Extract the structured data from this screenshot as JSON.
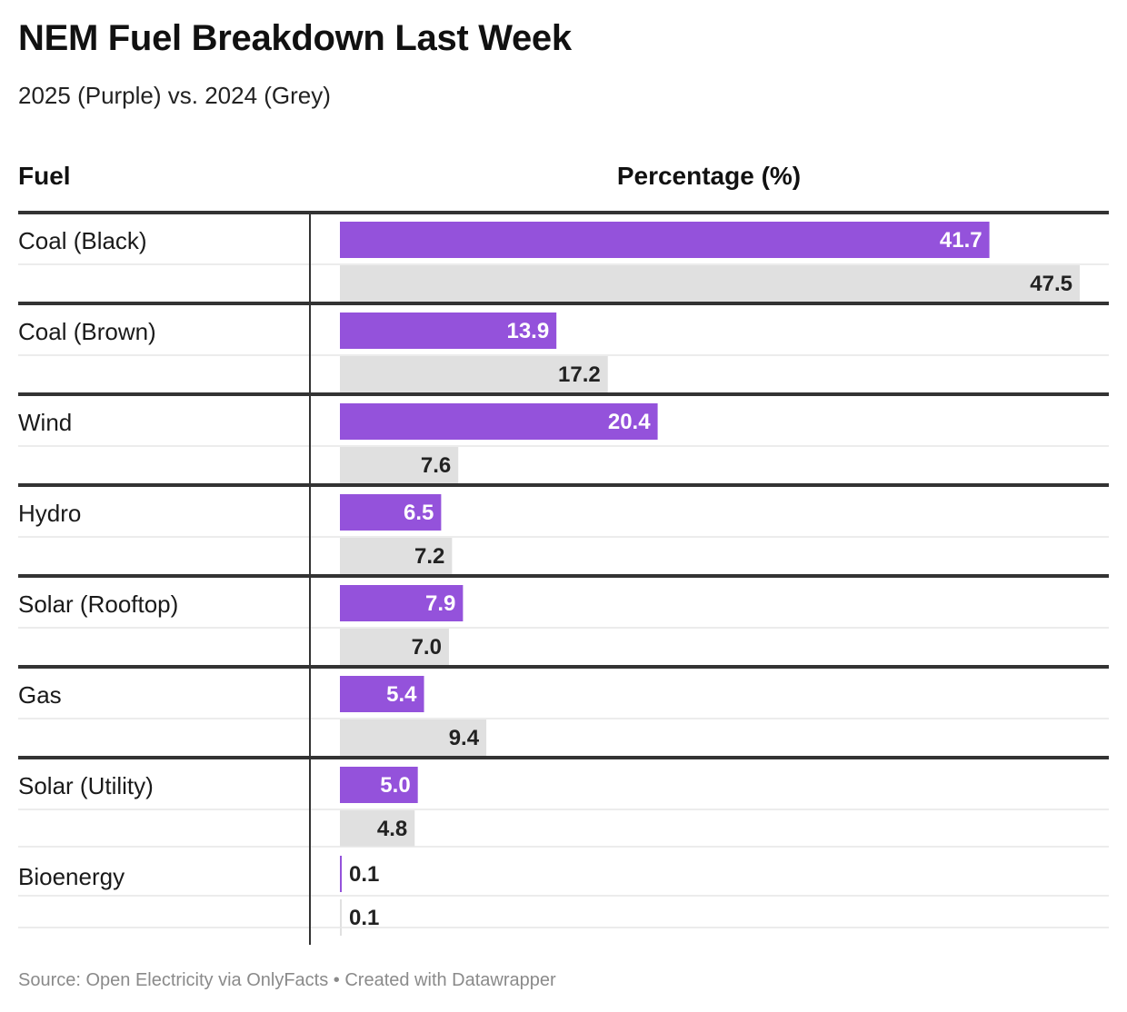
{
  "title": "NEM Fuel Breakdown Last Week",
  "subtitle": "2025 (Purple) vs. 2024 (Grey)",
  "columns": {
    "fuel": "Fuel",
    "value": "Percentage (%)"
  },
  "footer": "Source: Open Electricity via OnlyFacts • Created with Datawrapper",
  "colors": {
    "series_2025": "#9452db",
    "series_2024": "#e0e0e0",
    "label_on_purple": "#ffffff",
    "label_on_grey": "#222222",
    "row_divider": "#333333",
    "sub_divider": "#e6e6e6"
  },
  "chart_data": {
    "type": "bar",
    "orientation": "horizontal",
    "categories": [
      "Coal (Black)",
      "Coal (Brown)",
      "Wind",
      "Hydro",
      "Solar (Rooftop)",
      "Gas",
      "Solar (Utility)",
      "Bioenergy"
    ],
    "series": [
      {
        "values": [
          41.7,
          13.9,
          20.4,
          6.5,
          7.9,
          5.4,
          5.0,
          0.1
        ],
        "labels": [
          "41.7",
          "13.9",
          "20.4",
          "6.5",
          "7.9",
          "5.4",
          "5.0",
          "0.1"
        ]
      },
      {
        "values": [
          47.5,
          17.2,
          7.6,
          7.2,
          7.0,
          9.4,
          4.8,
          0.1
        ],
        "labels": [
          "47.5",
          "17.2",
          "7.6",
          "7.2",
          "7.0",
          "9.4",
          "4.8",
          "0.1"
        ]
      }
    ],
    "xlim": [
      0,
      47.5
    ]
  }
}
